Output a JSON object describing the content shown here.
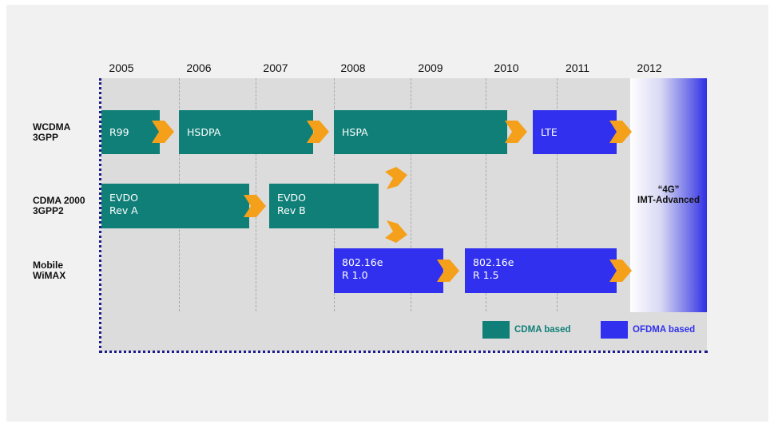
{
  "years": [
    "2005",
    "2006",
    "2007",
    "2008",
    "2009",
    "2010",
    "2011",
    "2012"
  ],
  "rows": [
    {
      "label": "WCDMA\n3GPP"
    },
    {
      "label": "CDMA 2000\n3GPP2"
    },
    {
      "label": "Mobile\nWiMAX"
    }
  ],
  "bars": {
    "r99": "R99",
    "hsdpa": "HSDPA",
    "hspa": "HSPA",
    "lte": "LTE",
    "evdo_a": "EVDO\nRev A",
    "evdo_b": "EVDO\nRev B",
    "wimax_10": "802.16e\nR 1.0",
    "wimax_15": "802.16e\nR 1.5"
  },
  "fourg": {
    "line1": "“4G”",
    "line2": "IMT-Advanced"
  },
  "legend": {
    "cdma": "CDMA based",
    "ofdma": "OFDMA based"
  },
  "colors": {
    "cdma": "#0f7f78",
    "ofdma": "#3030ee",
    "arrow": "#f5a01a",
    "border": "#1b1b8c"
  }
}
